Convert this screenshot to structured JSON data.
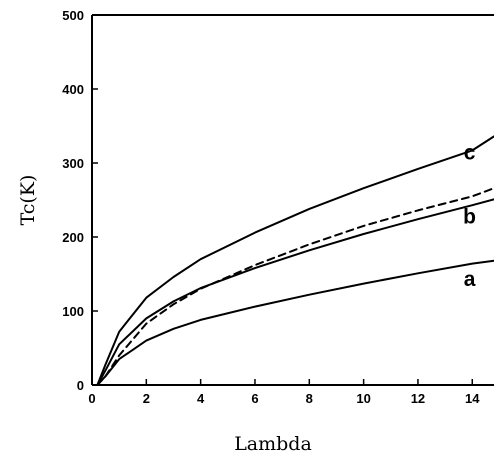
{
  "chart_data": {
    "type": "line",
    "title": "",
    "xlabel": "Lambda",
    "ylabel": "Tc(K)",
    "xlim": [
      0,
      14.8
    ],
    "ylim": [
      0,
      500
    ],
    "xticks": [
      0,
      2,
      4,
      6,
      8,
      10,
      12,
      14
    ],
    "yticks": [
      0,
      100,
      200,
      300,
      400,
      500
    ],
    "grid": false,
    "legend": "none",
    "series": [
      {
        "name": "a",
        "style": "solid",
        "color": "#000000",
        "x": [
          0.2,
          0.5,
          1,
          2,
          3,
          4,
          6,
          8,
          10,
          12,
          14,
          14.8
        ],
        "y": [
          0,
          12,
          35,
          60,
          76,
          88,
          106,
          122,
          137,
          151,
          164,
          168
        ]
      },
      {
        "name": "b",
        "style": "solid",
        "color": "#000000",
        "x": [
          0.2,
          0.5,
          1,
          2,
          3,
          4,
          6,
          8,
          10,
          12,
          14,
          14.8
        ],
        "y": [
          0,
          20,
          55,
          90,
          113,
          131,
          158,
          182,
          204,
          224,
          243,
          251
        ]
      },
      {
        "name": "c",
        "style": "solid",
        "color": "#000000",
        "x": [
          0.2,
          0.5,
          1,
          2,
          3,
          4,
          6,
          8,
          10,
          12,
          14,
          14.8
        ],
        "y": [
          0,
          28,
          72,
          118,
          146,
          170,
          206,
          238,
          266,
          292,
          317,
          336
        ]
      },
      {
        "name": "",
        "style": "dashed",
        "color": "#000000",
        "x": [
          0.2,
          0.5,
          1,
          2,
          3,
          4,
          6,
          8,
          10,
          12,
          14,
          14.8
        ],
        "y": [
          0,
          12,
          40,
          83,
          109,
          130,
          162,
          190,
          215,
          236,
          255,
          266
        ]
      }
    ],
    "annotations": [
      {
        "text": "c",
        "x": 13.9,
        "y": 305
      },
      {
        "text": "b",
        "x": 13.9,
        "y": 218
      },
      {
        "text": "a",
        "x": 13.9,
        "y": 134
      }
    ]
  }
}
